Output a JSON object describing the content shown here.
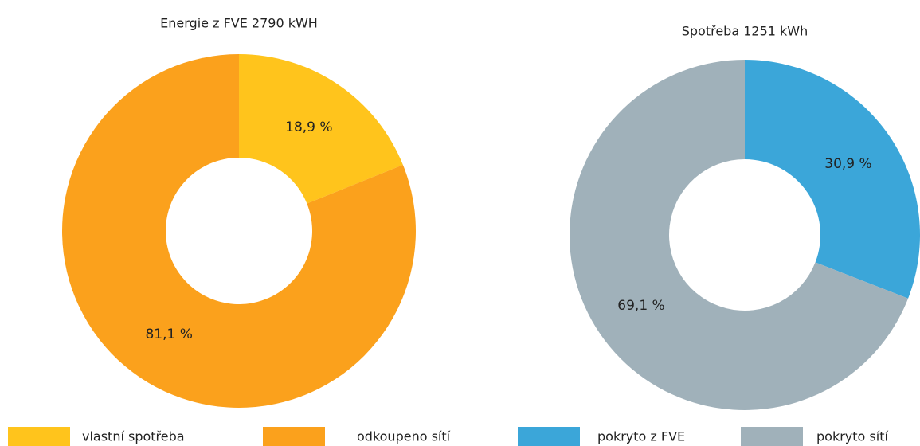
{
  "chart_data": [
    {
      "type": "pie",
      "title": "Energie z FVE 2790 kWH",
      "categories": [
        "vlastní spotřeba",
        "odkoupeno sítí"
      ],
      "values": [
        18.9,
        81.1
      ],
      "value_labels": [
        "18,9 %",
        "81,1 %"
      ],
      "colors": [
        "#FFC41C",
        "#FBA11C"
      ]
    },
    {
      "type": "pie",
      "title": "Spotřeba 1251 kWh",
      "categories": [
        "pokryto z FVE",
        "pokryto sítí"
      ],
      "values": [
        30.9,
        69.1
      ],
      "value_labels": [
        "30,9 %",
        "69,1 %"
      ],
      "colors": [
        "#3BA6D9",
        "#A0B1BA"
      ]
    }
  ]
}
